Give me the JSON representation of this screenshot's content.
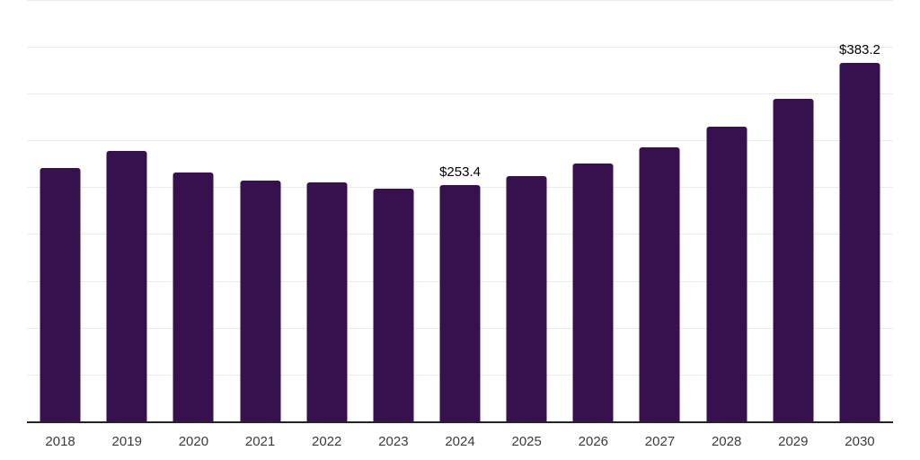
{
  "chart": {
    "background_color": "#FFFFFF",
    "bar_color": "#36114E",
    "gridline_color": "#EBEBEB",
    "axis_line_color": "#242428",
    "tick_label_color": "#3B3B3B",
    "value_label_color": "#000000"
  },
  "chart_data": {
    "type": "bar",
    "title": "",
    "xlabel": "",
    "ylabel": "",
    "categories": [
      "2018",
      "2019",
      "2020",
      "2021",
      "2022",
      "2023",
      "2024",
      "2025",
      "2026",
      "2027",
      "2028",
      "2029",
      "2030"
    ],
    "values": [
      271.4,
      289.9,
      266.8,
      258.1,
      256.2,
      249.4,
      253.4,
      262.3,
      275.7,
      293.0,
      315.4,
      344.9,
      383.2
    ],
    "bar_labels": [
      "",
      "",
      "",
      "",
      "",
      "",
      "$253.4",
      "",
      "",
      "",
      "",
      "",
      "$383.2"
    ],
    "labeled_points": [
      {
        "category": "2024",
        "label": "$253.4",
        "value": 253.4
      },
      {
        "category": "2030",
        "label": "$383.2",
        "value": 383.2
      }
    ],
    "value_unit_prefix": "$",
    "ylim": [
      0,
      450
    ],
    "gridline_step": 50,
    "gridlines": "horizontal only, no y-axis tick labels",
    "y_axis_labels_visible": false,
    "legend": "none",
    "series_count": 1
  }
}
